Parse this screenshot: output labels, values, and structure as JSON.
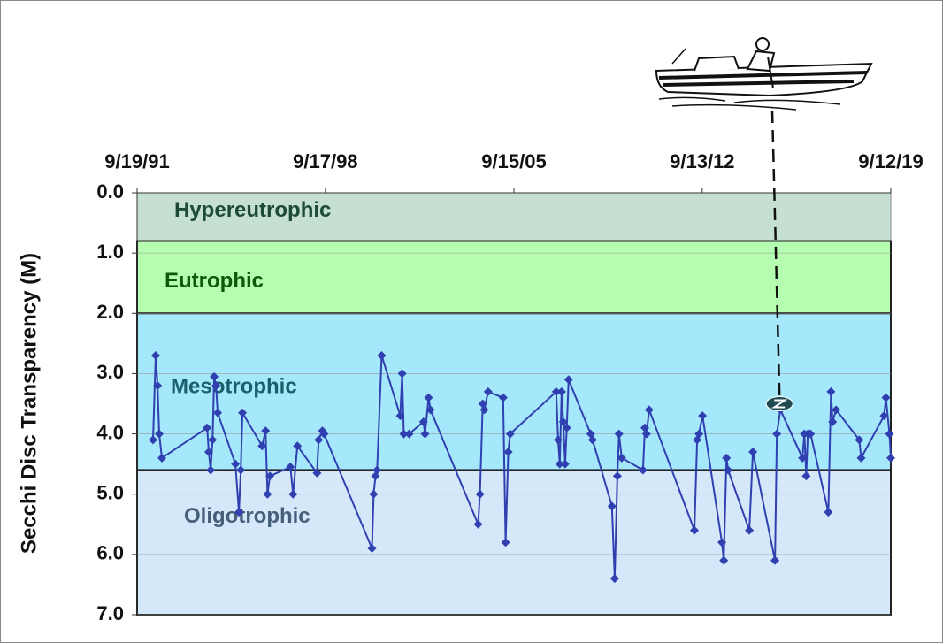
{
  "chart_data": {
    "type": "line",
    "y_label": "Secchi Disc Transparency (M)",
    "xlim": [
      1991.72,
      2019.7
    ],
    "xticks": [
      {
        "value": 1991.72,
        "label": "9/19/91"
      },
      {
        "value": 1998.71,
        "label": "9/17/98"
      },
      {
        "value": 2005.71,
        "label": "9/15/05"
      },
      {
        "value": 2012.7,
        "label": "9/13/12"
      },
      {
        "value": 2019.7,
        "label": "9/12/19"
      }
    ],
    "x_axis_position": "top",
    "ylim": [
      0,
      7
    ],
    "y_inverted": true,
    "yticks": [
      {
        "value": 0,
        "label": "0.0"
      },
      {
        "value": 1,
        "label": "1.0"
      },
      {
        "value": 2,
        "label": "2.0"
      },
      {
        "value": 3,
        "label": "3.0"
      },
      {
        "value": 4,
        "label": "4.0"
      },
      {
        "value": 5,
        "label": "5.0"
      },
      {
        "value": 6,
        "label": "6.0"
      },
      {
        "value": 7,
        "label": "7.0"
      }
    ],
    "grid": true,
    "bands": [
      {
        "label": "Hypereutrophic",
        "from": 0,
        "to": 0.8,
        "color": "#c5e0d0",
        "label_color": "#1e4a38"
      },
      {
        "label": "Eutrophic",
        "from": 0.8,
        "to": 2.0,
        "color": "#b5fdb0",
        "label_color": "#0a5a0a"
      },
      {
        "label": "Mesotrophic",
        "from": 2.0,
        "to": 4.6,
        "color": "#a6e8fb",
        "label_color": "#1b5e6b"
      },
      {
        "label": "Oligotrophic",
        "from": 4.6,
        "to": 7.0,
        "color": "#d4e8fa",
        "label_color": "#46607a"
      }
    ],
    "color": "#3040b0",
    "x": [
      1992.31,
      1992.41,
      1992.48,
      1992.54,
      1992.64,
      1994.32,
      1994.38,
      1994.45,
      1994.52,
      1994.58,
      1994.65,
      1994.71,
      1995.37,
      1995.5,
      1995.57,
      1995.63,
      1996.36,
      1996.49,
      1996.56,
      1996.65,
      1997.41,
      1997.51,
      1997.67,
      1998.4,
      1998.46,
      1998.6,
      1998.66,
      2000.44,
      2000.5,
      2000.57,
      2000.63,
      2000.8,
      2001.49,
      2001.56,
      2001.62,
      2001.82,
      2002.35,
      2002.41,
      2002.54,
      2002.61,
      2004.38,
      2004.45,
      2004.55,
      2004.61,
      2004.75,
      2005.31,
      2005.4,
      2005.5,
      2005.57,
      2007.28,
      2007.35,
      2007.41,
      2007.48,
      2007.54,
      2007.61,
      2007.67,
      2007.74,
      2008.56,
      2008.63,
      2009.35,
      2009.45,
      2009.55,
      2009.61,
      2009.71,
      2010.5,
      2010.57,
      2010.63,
      2010.73,
      2012.41,
      2012.51,
      2012.58,
      2012.71,
      2013.43,
      2013.5,
      2013.6,
      2013.66,
      2014.45,
      2014.58,
      2015.4,
      2015.47,
      2015.6,
      2016.42,
      2016.49,
      2016.56,
      2016.62,
      2016.72,
      2017.38,
      2017.48,
      2017.54,
      2017.67,
      2018.53,
      2018.6,
      2019.45,
      2019.52,
      2019.65,
      2019.7
    ],
    "values": [
      4.1,
      2.7,
      3.2,
      4.0,
      4.4,
      3.9,
      4.3,
      4.6,
      4.1,
      3.05,
      3.2,
      3.65,
      4.5,
      5.3,
      4.6,
      3.65,
      4.2,
      3.95,
      5.0,
      4.7,
      4.55,
      5.0,
      4.2,
      4.65,
      4.1,
      3.95,
      4.0,
      5.9,
      5.0,
      4.7,
      4.6,
      2.7,
      3.7,
      3.0,
      4.0,
      4.0,
      3.8,
      4.0,
      3.4,
      3.6,
      5.5,
      5.0,
      3.5,
      3.6,
      3.3,
      3.4,
      5.8,
      4.3,
      4.0,
      3.3,
      4.1,
      4.5,
      3.3,
      3.8,
      4.5,
      3.9,
      3.1,
      4.0,
      4.1,
      5.2,
      6.4,
      4.7,
      4.0,
      4.4,
      4.6,
      3.9,
      4.0,
      3.6,
      5.6,
      4.1,
      4.0,
      3.7,
      5.8,
      6.1,
      4.4,
      4.6,
      5.6,
      4.3,
      6.1,
      4.0,
      3.6,
      4.4,
      4.0,
      4.7,
      4.0,
      4.0,
      5.3,
      3.3,
      3.8,
      3.6,
      4.1,
      4.4,
      3.7,
      3.4,
      4.0,
      4.4
    ],
    "marker": {
      "x": 2015.57,
      "value": 3.5
    }
  }
}
